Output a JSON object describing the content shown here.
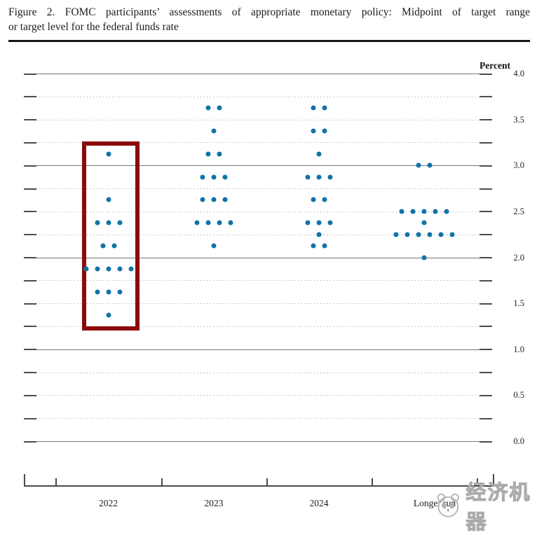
{
  "title": {
    "line1": "Figure 2.  FOMC participants’ assessments of appropriate monetary policy:  Midpoint of target range",
    "line2": "or target level for the federal funds rate"
  },
  "colors": {
    "dot": "#1073A8",
    "highlight_box": "#8B0B0B",
    "grid_solid": "#767676",
    "grid_dotted": "#9B9B9B"
  },
  "watermark": {
    "text": "经济机器",
    "logo": "panda-logo"
  },
  "chart_data": {
    "type": "scatter",
    "title": "FOMC participants’ assessments of appropriate monetary policy: Midpoint of target range or target level for the federal funds rate",
    "ylabel": "Percent",
    "unit_label": "Percent",
    "ylim": [
      0.0,
      4.0
    ],
    "grid_step": 0.25,
    "y_label_step": 0.5,
    "grid": "on",
    "legend": "none",
    "x_categories": [
      "2022",
      "2023",
      "2024",
      "Longer run"
    ],
    "columns": [
      {
        "label": "2022",
        "highlighted": true,
        "dots": [
          {
            "rate": 3.125,
            "count": 1
          },
          {
            "rate": 2.625,
            "count": 1
          },
          {
            "rate": 2.375,
            "count": 3
          },
          {
            "rate": 2.125,
            "count": 2
          },
          {
            "rate": 1.875,
            "count": 5
          },
          {
            "rate": 1.625,
            "count": 3
          },
          {
            "rate": 1.375,
            "count": 1
          }
        ]
      },
      {
        "label": "2023",
        "highlighted": false,
        "dots": [
          {
            "rate": 3.625,
            "count": 2
          },
          {
            "rate": 3.375,
            "count": 1
          },
          {
            "rate": 3.125,
            "count": 2
          },
          {
            "rate": 2.875,
            "count": 3
          },
          {
            "rate": 2.625,
            "count": 3
          },
          {
            "rate": 2.375,
            "count": 4
          },
          {
            "rate": 2.125,
            "count": 1
          }
        ]
      },
      {
        "label": "2024",
        "highlighted": false,
        "dots": [
          {
            "rate": 3.625,
            "count": 2
          },
          {
            "rate": 3.375,
            "count": 2
          },
          {
            "rate": 3.125,
            "count": 1
          },
          {
            "rate": 2.875,
            "count": 3
          },
          {
            "rate": 2.625,
            "count": 2
          },
          {
            "rate": 2.375,
            "count": 3
          },
          {
            "rate": 2.25,
            "count": 1
          },
          {
            "rate": 2.125,
            "count": 2
          }
        ]
      },
      {
        "label": "Longer run",
        "highlighted": false,
        "dots": [
          {
            "rate": 3.0,
            "count": 2
          },
          {
            "rate": 2.5,
            "count": 5
          },
          {
            "rate": 2.375,
            "count": 1
          },
          {
            "rate": 2.25,
            "count": 6
          },
          {
            "rate": 2.0,
            "count": 1
          }
        ]
      }
    ]
  }
}
